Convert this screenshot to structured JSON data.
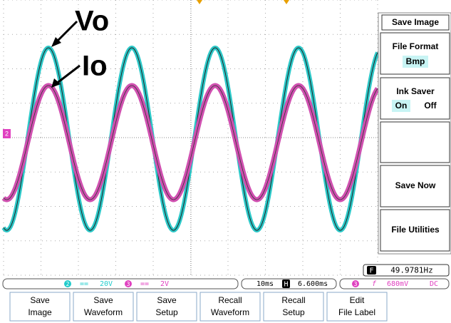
{
  "annotations": [
    "Vo",
    "Io"
  ],
  "menu": {
    "title": "Save Image",
    "file_format": {
      "label": "File Format",
      "value": "Bmp"
    },
    "ink_saver": {
      "label": "Ink Saver",
      "options": [
        "On",
        "Off"
      ]
    },
    "save_now": "Save Now",
    "file_utilities": "File Utilities"
  },
  "frequency": {
    "badge": "F",
    "value": "49.9781Hz"
  },
  "status": {
    "ch2": {
      "number": "2",
      "coupling": "==",
      "scale": "20V"
    },
    "ch3": {
      "number": "3",
      "coupling": "==",
      "scale": "2V"
    },
    "timebase": "10ms",
    "h_badge": "H",
    "h_position": "6.600ms",
    "trigger": {
      "channel": "3",
      "slope": "f",
      "level": "680mV",
      "coupling": "DC"
    }
  },
  "channel_marker": "2",
  "softkeys": [
    [
      "Save",
      "Image"
    ],
    [
      "Save",
      "Waveform"
    ],
    [
      "Save",
      "Setup"
    ],
    [
      "Recall",
      "Waveform"
    ],
    [
      "Recall",
      "Setup"
    ],
    [
      "Edit",
      "File Label"
    ]
  ]
}
